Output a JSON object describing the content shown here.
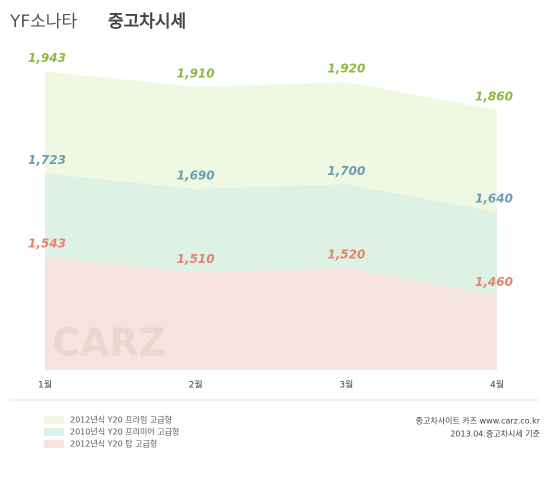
{
  "chart_data": {
    "type": "area",
    "title": [
      "YF소나타",
      "중고차시세"
    ],
    "categories": [
      "1월",
      "2월",
      "3월",
      "4월"
    ],
    "series": [
      {
        "name": "2012년식 Y20 프라임 고급형",
        "color": "#eff9e2",
        "label_color": "#8dba3c",
        "values": [
          1943,
          1910,
          1920,
          1860
        ],
        "value_labels": [
          "1,943",
          "1,910",
          "1,920",
          "1,860"
        ]
      },
      {
        "name": "2010년식 Y20 프리미어 고급형",
        "color": "#ddf1e5",
        "label_color": "#6c9db2",
        "values": [
          1723,
          1690,
          1700,
          1640
        ],
        "value_labels": [
          "1,723",
          "1,690",
          "1,700",
          "1,640"
        ]
      },
      {
        "name": "2012년식 Y20 탑 고급형",
        "color": "#f6e3dd",
        "label_color": "#e2856c",
        "values": [
          1543,
          1510,
          1520,
          1460
        ],
        "value_labels": [
          "1,543",
          "1,510",
          "1,520",
          "1,460"
        ]
      }
    ],
    "ylim": [
      1300,
      2000
    ],
    "watermark": "CARZ",
    "notes": [
      "중고차사이트 카즈 www.carz.co.kr",
      "2013.04.중고차시세 기준"
    ]
  }
}
